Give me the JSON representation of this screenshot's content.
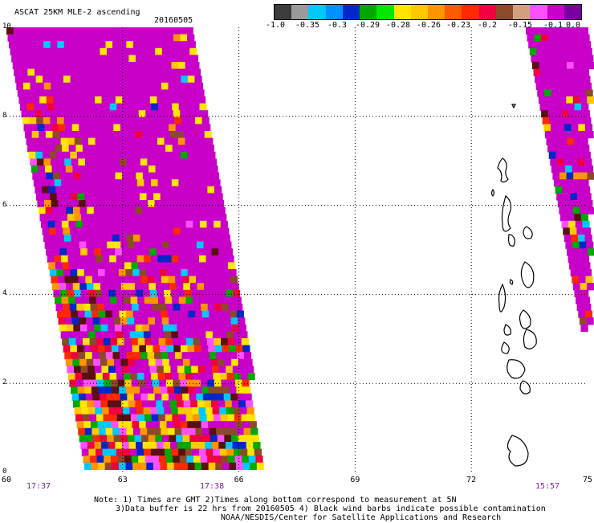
{
  "title": "ASCAT 25KM MLE-2 ascending",
  "date": "20160505",
  "color_scale": {
    "colors": [
      "#3c3c3c",
      "#9a9a9a",
      "#00c8ff",
      "#0090ff",
      "#0028c8",
      "#00a800",
      "#00e600",
      "#ffe600",
      "#ffc800",
      "#ff9600",
      "#ff5a00",
      "#ff2800",
      "#f00040",
      "#8c4a28",
      "#d0a080",
      "#ff50ff",
      "#c800c8",
      "#7800a0"
    ],
    "labels": [
      "-1.0",
      "-0.35",
      "-0.3",
      "-0.29",
      "-0.28",
      "-0.26",
      "-0.23",
      "-0.2",
      "-0.15",
      "-0.1",
      "0.0"
    ]
  },
  "axes": {
    "x_ticks": [
      "60",
      "63",
      "66",
      "69",
      "72",
      "75"
    ],
    "y_ticks": [
      "10",
      "8",
      "6",
      "4",
      "2",
      "0"
    ]
  },
  "times": [
    "17:37",
    "17:38",
    "15:57"
  ],
  "notes": [
    "Note: 1) Times are GMT 2)Times along bottom correspond to measurement at 5N",
    "3)Data buffer is 22 hrs from 20160505 4) Black wind barbs indicate possible contamination",
    "NOAA/NESDIS/Center for Satellite Applications and Research"
  ]
}
